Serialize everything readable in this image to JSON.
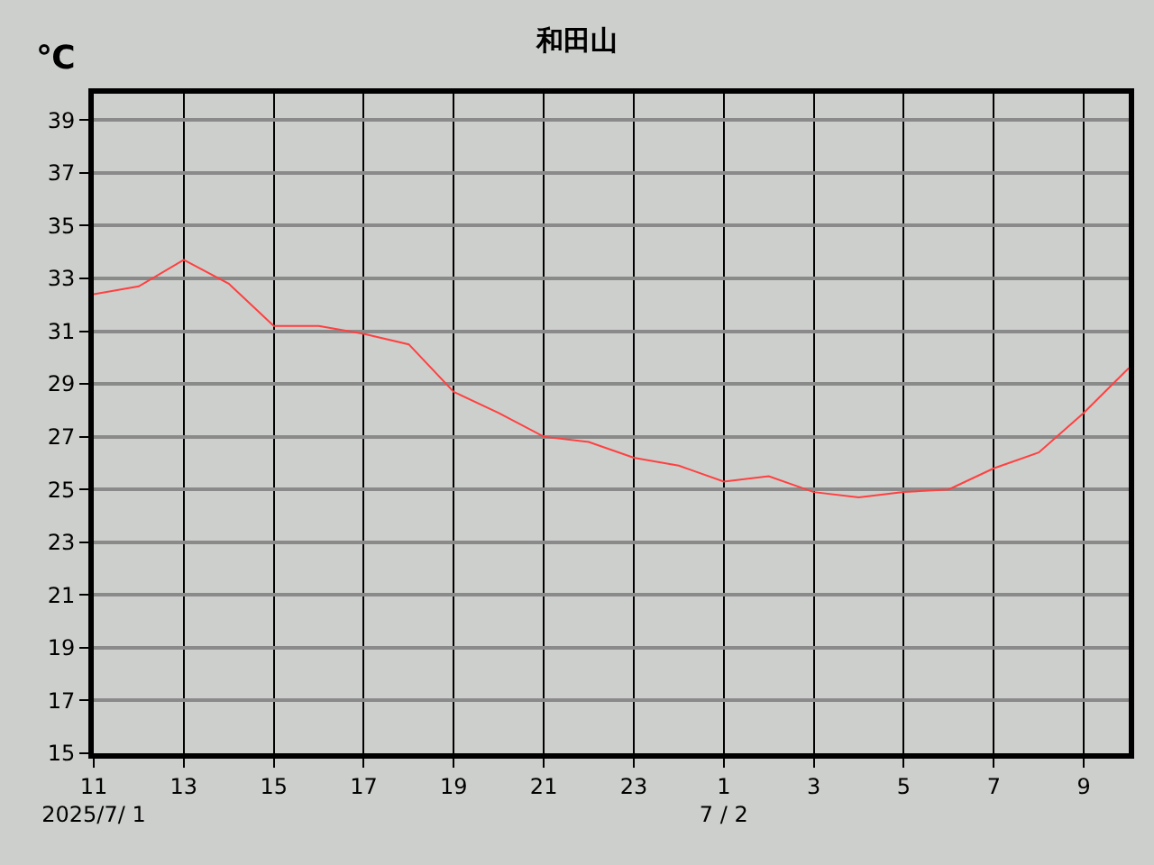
{
  "chart_data": {
    "type": "line",
    "title": "和田山",
    "ylabel": "℃",
    "x": [
      "2025-07-01T11:00",
      "2025-07-01T12:00",
      "2025-07-01T13:00",
      "2025-07-01T14:00",
      "2025-07-01T15:00",
      "2025-07-01T16:00",
      "2025-07-01T17:00",
      "2025-07-01T18:00",
      "2025-07-01T19:00",
      "2025-07-01T20:00",
      "2025-07-01T21:00",
      "2025-07-01T22:00",
      "2025-07-01T23:00",
      "2025-07-02T00:00",
      "2025-07-02T01:00",
      "2025-07-02T02:00",
      "2025-07-02T03:00",
      "2025-07-02T04:00",
      "2025-07-02T05:00",
      "2025-07-02T06:00",
      "2025-07-02T07:00",
      "2025-07-02T08:00",
      "2025-07-02T09:00",
      "2025-07-02T10:00"
    ],
    "series": [
      {
        "color": "#ff4040",
        "values": [
          32.4,
          32.7,
          33.7,
          32.8,
          31.2,
          31.2,
          30.9,
          30.5,
          28.7,
          27.9,
          27.0,
          26.8,
          26.2,
          25.9,
          25.3,
          25.5,
          24.9,
          24.7,
          24.9,
          25.0,
          25.8,
          26.4,
          27.9,
          29.6
        ]
      }
    ],
    "xlim": [
      "2025-07-01T11:00",
      "2025-07-02T10:00"
    ],
    "xticks": [
      {
        "value": "2025-07-01T11:00",
        "label": "11\n2025/7/ 1"
      },
      {
        "value": "2025-07-01T13:00",
        "label": "13"
      },
      {
        "value": "2025-07-01T15:00",
        "label": "15"
      },
      {
        "value": "2025-07-01T17:00",
        "label": "17"
      },
      {
        "value": "2025-07-01T19:00",
        "label": "19"
      },
      {
        "value": "2025-07-01T21:00",
        "label": "21"
      },
      {
        "value": "2025-07-01T23:00",
        "label": "23"
      },
      {
        "value": "2025-07-02T01:00",
        "label": "1\n7 / 2"
      },
      {
        "value": "2025-07-02T03:00",
        "label": "3"
      },
      {
        "value": "2025-07-02T05:00",
        "label": "5"
      },
      {
        "value": "2025-07-02T07:00",
        "label": "7"
      },
      {
        "value": "2025-07-02T09:00",
        "label": "9"
      }
    ],
    "ylim": [
      15,
      40
    ],
    "yticks": [
      15,
      17,
      19,
      21,
      23,
      25,
      27,
      29,
      31,
      33,
      35,
      37,
      39
    ],
    "grid": true,
    "marker": "none",
    "line_style": "solid"
  }
}
